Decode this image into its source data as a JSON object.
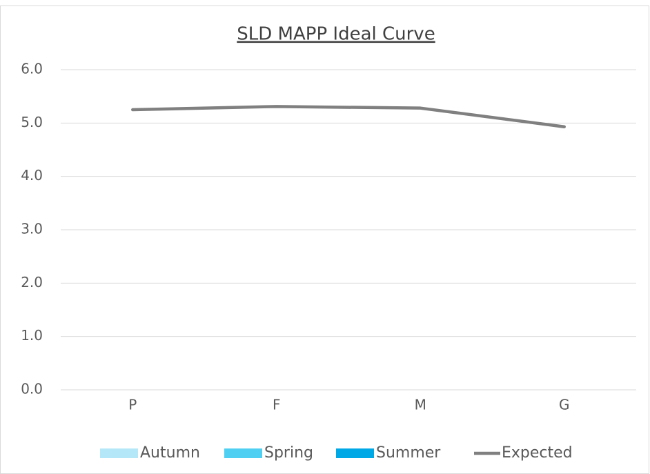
{
  "chart_data": {
    "type": "line",
    "title": "SLD MAPP Ideal Curve",
    "categories": [
      "P",
      "F",
      "M",
      "G"
    ],
    "series": [
      {
        "name": "Autumn",
        "type": "bar",
        "color": "#b4e8f8",
        "values": [
          null,
          null,
          null,
          null
        ]
      },
      {
        "name": "Spring",
        "type": "bar",
        "color": "#4fd0f3",
        "values": [
          null,
          null,
          null,
          null
        ]
      },
      {
        "name": "Summer",
        "type": "bar",
        "color": "#00a8e6",
        "values": [
          null,
          null,
          null,
          null
        ]
      },
      {
        "name": "Expected",
        "type": "line",
        "color": "#808080",
        "values": [
          5.25,
          5.31,
          5.28,
          4.93
        ]
      }
    ],
    "ylim": [
      0,
      6
    ],
    "yticks": [
      {
        "value": 0,
        "label": "0.0"
      },
      {
        "value": 1,
        "label": "1.0"
      },
      {
        "value": 2,
        "label": "2.0"
      },
      {
        "value": 3,
        "label": "3.0"
      },
      {
        "value": 4,
        "label": "4.0"
      },
      {
        "value": 5,
        "label": "5.0"
      },
      {
        "value": 6,
        "label": "6.0"
      }
    ],
    "grid": true,
    "legend": "bottom"
  }
}
